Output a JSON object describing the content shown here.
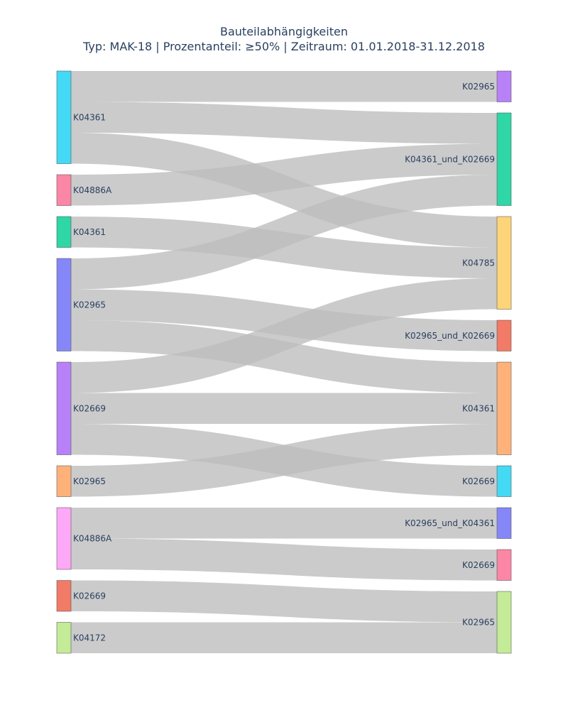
{
  "chart_data": {
    "type": "sankey",
    "title": "Bauteilabhängigkeiten",
    "subtitle": "Typ: MAK-18 | Prozentanteil: ≥50% | Zeitraum: 01.01.2018-31.12.2018",
    "link_color": "#bdbdbd",
    "sources": [
      {
        "label": "K04361",
        "value": 3,
        "color": "#44d9f5"
      },
      {
        "label": "K04886A",
        "value": 1,
        "color": "#fc86a6"
      },
      {
        "label": "K04361",
        "value": 1,
        "color": "#2fd6a6"
      },
      {
        "label": "K02965",
        "value": 3,
        "color": "#8587f8"
      },
      {
        "label": "K02669",
        "value": 3,
        "color": "#b881f8"
      },
      {
        "label": "K02965",
        "value": 1,
        "color": "#feb27a"
      },
      {
        "label": "K04886A",
        "value": 2,
        "color": "#fea8f8"
      },
      {
        "label": "K02669",
        "value": 1,
        "color": "#f17b66"
      },
      {
        "label": "K04172",
        "value": 1,
        "color": "#c4eb98"
      }
    ],
    "targets": [
      {
        "label": "K02965",
        "value": 1,
        "color": "#b881f8"
      },
      {
        "label": "K04361_und_K02669",
        "value": 3,
        "color": "#2fd6a6"
      },
      {
        "label": "K04785",
        "value": 3,
        "color": "#fed479"
      },
      {
        "label": "K02965_und_K02669",
        "value": 1,
        "color": "#f17b66"
      },
      {
        "label": "K04361",
        "value": 3,
        "color": "#feb27a"
      },
      {
        "label": "K02669",
        "value": 1,
        "color": "#44d9f5"
      },
      {
        "label": "K02965_und_K04361",
        "value": 1,
        "color": "#8587f8"
      },
      {
        "label": "K02669",
        "value": 1,
        "color": "#fc86a6"
      },
      {
        "label": "K02965",
        "value": 2,
        "color": "#c4eb98"
      }
    ],
    "links": [
      {
        "source": 0,
        "target": 0,
        "value": 1
      },
      {
        "source": 0,
        "target": 1,
        "value": 1
      },
      {
        "source": 0,
        "target": 2,
        "value": 1
      },
      {
        "source": 1,
        "target": 1,
        "value": 1
      },
      {
        "source": 2,
        "target": 2,
        "value": 1
      },
      {
        "source": 3,
        "target": 1,
        "value": 1
      },
      {
        "source": 3,
        "target": 3,
        "value": 1
      },
      {
        "source": 3,
        "target": 4,
        "value": 1
      },
      {
        "source": 4,
        "target": 2,
        "value": 1
      },
      {
        "source": 4,
        "target": 4,
        "value": 1
      },
      {
        "source": 4,
        "target": 5,
        "value": 1
      },
      {
        "source": 5,
        "target": 4,
        "value": 1
      },
      {
        "source": 6,
        "target": 6,
        "value": 1
      },
      {
        "source": 6,
        "target": 7,
        "value": 1
      },
      {
        "source": 7,
        "target": 8,
        "value": 1
      },
      {
        "source": 8,
        "target": 8,
        "value": 1
      }
    ]
  }
}
